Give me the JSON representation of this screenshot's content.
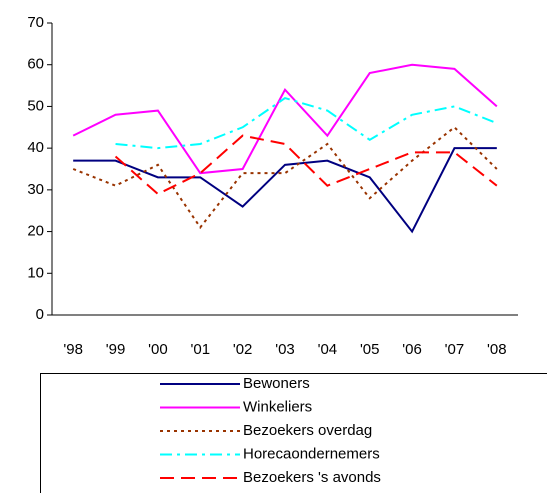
{
  "chart_data": {
    "type": "line",
    "categories": [
      "'98",
      "'99",
      "'00",
      "'01",
      "'02",
      "'03",
      "'04",
      "'05",
      "'06",
      "'07",
      "'08"
    ],
    "ylim": [
      0,
      70
    ],
    "yticks": [
      0,
      10,
      20,
      30,
      40,
      50,
      60,
      70
    ],
    "series": [
      {
        "name": "Bewoners",
        "color": "#000080",
        "style": "solid",
        "values": [
          37,
          37,
          33,
          33,
          26,
          36,
          37,
          33,
          20,
          40,
          40
        ]
      },
      {
        "name": "Winkeliers",
        "color": "#ff00ff",
        "style": "solid",
        "values": [
          43,
          48,
          49,
          34,
          35,
          54,
          43,
          58,
          60,
          59,
          50
        ]
      },
      {
        "name": "Bezoekers overdag",
        "color": "#993300",
        "style": "dotted",
        "values": [
          35,
          31,
          36,
          21,
          34,
          34,
          41,
          28,
          37,
          45,
          35
        ]
      },
      {
        "name": "Horecaondernemers",
        "color": "#00ffff",
        "style": "dashdot",
        "values": [
          null,
          41,
          40,
          41,
          45,
          52,
          49,
          42,
          48,
          50,
          46
        ]
      },
      {
        "name": "Bezoekers 's avonds",
        "color": "#ff0000",
        "style": "dashed",
        "values": [
          null,
          38,
          29,
          34,
          43,
          41,
          31,
          35,
          39,
          39,
          31
        ]
      }
    ]
  }
}
